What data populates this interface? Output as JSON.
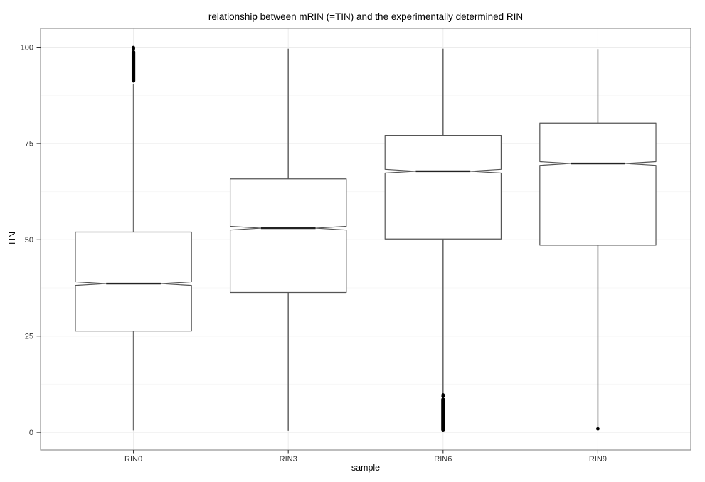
{
  "figure": {
    "title": "relationship between mRIN (=TIN) and the experimentally determined RIN",
    "x_axis_title": "sample",
    "y_axis_title": "TIN"
  },
  "chart_data": {
    "type": "boxplot",
    "notched": true,
    "title": "relationship between mRIN (=TIN) and the experimentally determined RIN",
    "xlabel": "sample",
    "ylabel": "TIN",
    "categories": [
      "RIN0",
      "RIN3",
      "RIN6",
      "RIN9"
    ],
    "y_ticks": [
      {
        "value": 0,
        "label": "0"
      },
      {
        "value": 25,
        "label": "25"
      },
      {
        "value": 50,
        "label": "50"
      },
      {
        "value": 75,
        "label": "75"
      },
      {
        "value": 100,
        "label": "100"
      }
    ],
    "y_minor_ticks": [
      12.5,
      37.5,
      62.5,
      87.5
    ],
    "ylim": [
      -4.6,
      104.9
    ],
    "grid": true,
    "legend": false,
    "boxes": [
      {
        "sample": "RIN0",
        "whisker_low": 0.5,
        "q1": 26.3,
        "median": 38.6,
        "q3": 52.0,
        "whisker_high": 90.5,
        "outlier_cluster": [
          90.8,
          99.2
        ],
        "outlier_points": [
          99.6,
          99.9
        ]
      },
      {
        "sample": "RIN3",
        "whisker_low": 0.4,
        "q1": 36.3,
        "median": 53.0,
        "q3": 65.8,
        "whisker_high": 99.6,
        "outlier_cluster": null,
        "outlier_points": []
      },
      {
        "sample": "RIN6",
        "whisker_low": 9.9,
        "q1": 50.2,
        "median": 67.8,
        "q3": 77.1,
        "whisker_high": 99.6,
        "outlier_cluster": [
          0.2,
          9.0
        ],
        "outlier_points": [
          9.4,
          9.7
        ]
      },
      {
        "sample": "RIN9",
        "whisker_low": 1.3,
        "q1": 48.6,
        "median": 69.8,
        "q3": 80.3,
        "whisker_high": 99.5,
        "outlier_cluster": null,
        "outlier_points": [
          0.9
        ]
      }
    ],
    "colors": {
      "background": "#ffffff",
      "panel_background": "#ffffff",
      "panel_border": "#919191",
      "grid_major": "#ececec",
      "grid_minor": "#f7f7f7",
      "box_stroke": "#555555",
      "box_fill": "#ffffff",
      "whisker": "#6e6e6e",
      "median": "#222222",
      "outlier": "#000000",
      "tick_mark": "#333333",
      "tick_text": "#333333",
      "title_text": "#000000"
    }
  }
}
